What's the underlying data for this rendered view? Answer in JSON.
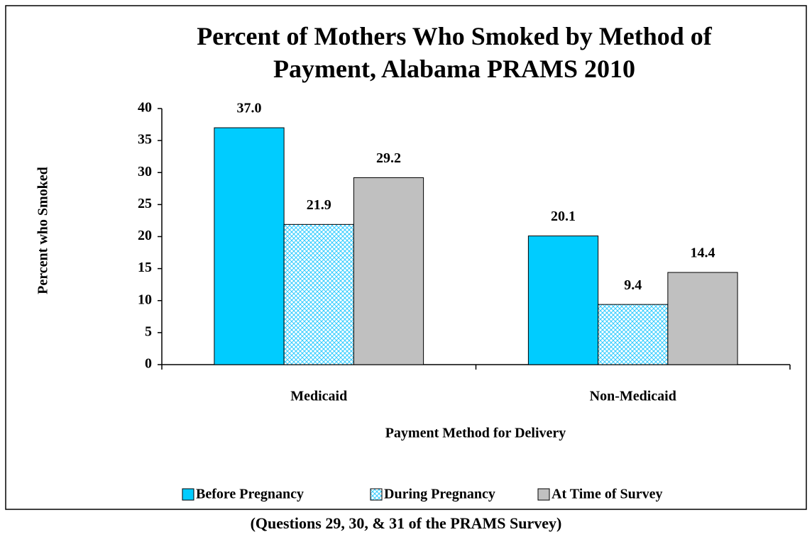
{
  "chart_data": {
    "type": "bar",
    "title": "Percent of Mothers Who Smoked by Method of Payment, Alabama PRAMS 2010",
    "caption": "(Questions 29, 30, & 31 of the PRAMS Survey)",
    "x_label": "Payment Method for Delivery",
    "y_label": "Percent who Smoked",
    "categories": [
      "Medicaid",
      "Non-Medicaid"
    ],
    "series": [
      {
        "name": "Before Pregnancy",
        "color": "#00ccff",
        "values": [
          37.0,
          20.1
        ],
        "value_labels": [
          "37.0",
          "20.1"
        ]
      },
      {
        "name": "During Pregnancy",
        "color": "#33ccff",
        "pattern": "crosshatch",
        "values": [
          21.9,
          9.4
        ],
        "value_labels": [
          "21.9",
          "9.4"
        ]
      },
      {
        "name": "At Time of Survey",
        "color": "#c0c0c0",
        "values": [
          29.2,
          14.4
        ],
        "value_labels": [
          "29.2",
          "14.4"
        ]
      }
    ],
    "ylim": [
      0,
      40
    ],
    "yticks": [
      0,
      5,
      10,
      15,
      20,
      25,
      30,
      35,
      40
    ],
    "grid": false,
    "legend": "bottom"
  }
}
